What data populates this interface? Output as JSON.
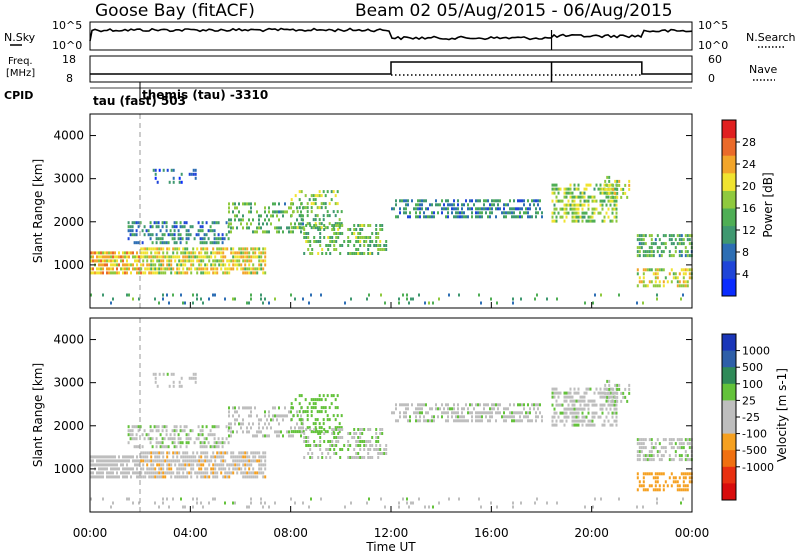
{
  "header": {
    "station": "Goose Bay (fitACF)",
    "beam_info": "Beam 02 05/Aug/2015 - 06/Aug/2015"
  },
  "noise_panel": {
    "left_label": "N.Sky",
    "left_ticks": [
      "10^5",
      "10^0"
    ],
    "right_label": "N.Search",
    "right_ticks": [
      "10^5",
      "10^0"
    ]
  },
  "freq_panel": {
    "left_label_1": "Freq.",
    "left_label_2": "[MHz]",
    "left_ticks": [
      "18",
      "8"
    ],
    "right_label": "Nave",
    "right_ticks": [
      "60",
      "0"
    ]
  },
  "cpid": {
    "label": "CPID",
    "annotations": [
      "themis (tau) -3310",
      "tau (fast) 503"
    ]
  },
  "time_axis": {
    "label": "Time UT",
    "ticks": [
      "00:00",
      "04:00",
      "08:00",
      "12:00",
      "16:00",
      "20:00",
      "00:00"
    ]
  },
  "power_panel": {
    "ylabel": "Slant Range [km]",
    "yticks": [
      "1000",
      "2000",
      "3000",
      "4000"
    ],
    "colorbar_title": "Power [dB]",
    "colorbar_ticks": [
      "4",
      "8",
      "12",
      "16",
      "20",
      "24",
      "28"
    ],
    "colors": [
      "#0a2cff",
      "#1f45d8",
      "#2d6eb4",
      "#3f9870",
      "#4fae55",
      "#8fc93e",
      "#f0e330",
      "#f2a52a",
      "#ea6a2a",
      "#e02020"
    ]
  },
  "velocity_panel": {
    "ylabel": "Slant Range [km]",
    "yticks": [
      "1000",
      "2000",
      "3000",
      "4000"
    ],
    "colorbar_title": "Velocity [m s-1]",
    "colorbar_ticks": [
      "1000",
      "500",
      "100",
      "25",
      "-25",
      "-100",
      "-500",
      "-1000"
    ],
    "colors": [
      "#1a36b8",
      "#2e5fa8",
      "#2f8a58",
      "#63c23a",
      "#bebebe",
      "#bebebe",
      "#f5a020",
      "#f07010",
      "#e83010",
      "#d80c0c"
    ]
  },
  "chart_data": {
    "type": "heatmap",
    "x_range_hours": [
      0,
      24
    ],
    "y_range_km": [
      0,
      4500
    ],
    "xlabel": "Time UT",
    "ylabel": "Slant Range [km]",
    "scatter_bands": [
      {
        "t": [
          0.0,
          2.0
        ],
        "r": [
          850,
          1400
        ],
        "p": 0.8,
        "pow": 22,
        "vel": -40
      },
      {
        "t": [
          2.0,
          7.0
        ],
        "r": [
          850,
          1450
        ],
        "p": 0.75,
        "pow": 20,
        "vel": -80
      },
      {
        "t": [
          1.5,
          5.5
        ],
        "r": [
          1550,
          2050
        ],
        "p": 0.5,
        "pow": 10,
        "vel": 10
      },
      {
        "t": [
          5.5,
          8.5
        ],
        "r": [
          1800,
          2500
        ],
        "p": 0.4,
        "pow": 14,
        "vel": 0
      },
      {
        "t": [
          8.0,
          10.0
        ],
        "r": [
          1900,
          2800
        ],
        "p": 0.35,
        "pow": 16,
        "vel": 60
      },
      {
        "t": [
          8.5,
          11.8
        ],
        "r": [
          1300,
          2000
        ],
        "p": 0.45,
        "pow": 15,
        "vel": 20
      },
      {
        "t": [
          12.0,
          18.0
        ],
        "r": [
          2150,
          2600
        ],
        "p": 0.55,
        "pow": 10,
        "vel": 5
      },
      {
        "t": [
          18.4,
          21.0
        ],
        "r": [
          2050,
          2900
        ],
        "p": 0.6,
        "pow": 17,
        "vel": 5
      },
      {
        "t": [
          20.5,
          21.5
        ],
        "r": [
          2600,
          3100
        ],
        "p": 0.4,
        "pow": 19,
        "vel": 10
      },
      {
        "t": [
          21.8,
          24.0
        ],
        "r": [
          1250,
          1750
        ],
        "p": 0.6,
        "pow": 14,
        "vel": 5
      },
      {
        "t": [
          21.8,
          24.0
        ],
        "r": [
          550,
          1000
        ],
        "p": 0.5,
        "pow": 20,
        "vel": -250
      },
      {
        "t": [
          2.5,
          4.2
        ],
        "r": [
          2950,
          3300
        ],
        "p": 0.3,
        "pow": 6,
        "vel": 0
      },
      {
        "t": [
          0.0,
          24.0
        ],
        "r": [
          150,
          420
        ],
        "p": 0.1,
        "pow": 12,
        "vel": 0
      }
    ]
  }
}
